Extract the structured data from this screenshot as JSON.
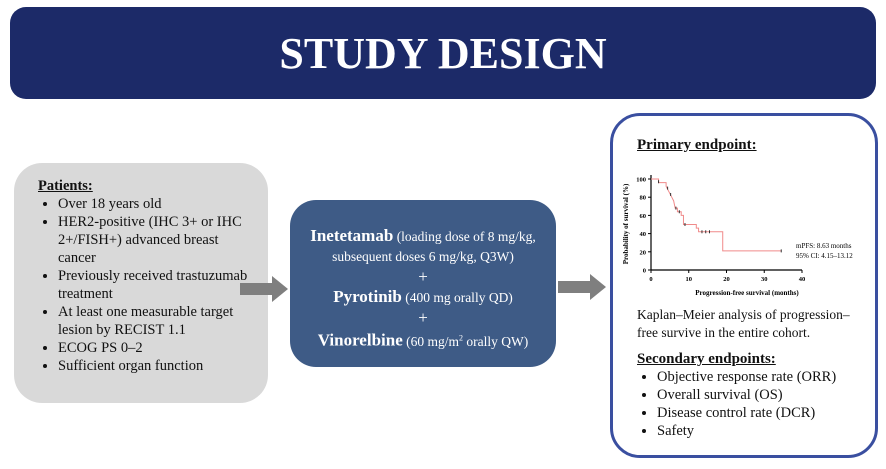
{
  "title": "STUDY DESIGN",
  "patients": {
    "heading": "Patients:",
    "items": [
      "Over 18 years old",
      "HER2-positive (IHC 3+ or IHC 2+/FISH+) advanced breast cancer",
      "Previously received trastuzumab treatment",
      "At least one measurable target lesion by RECIST 1.1",
      "ECOG PS 0–2",
      "Sufficient organ function"
    ]
  },
  "treatment": {
    "drug1": "Inetetamab",
    "dose1": "(loading dose of 8 mg/kg, subsequent doses 6 mg/kg, Q3W)",
    "plus": "+",
    "drug2": "Pyrotinib",
    "dose2": "(400 mg orally QD)",
    "drug3": "Vinorelbine",
    "dose3a": "(60 mg/m",
    "dose3sup": "2",
    "dose3b": " orally QW)"
  },
  "endpoints": {
    "primary_heading": "Primary endpoint:",
    "caption": "Kaplan–Meier analysis of progression–free survive in the entire cohort.",
    "secondary_heading": "Secondary endpoints:",
    "secondary": [
      "Objective response rate (ORR)",
      "Overall survival (OS)",
      "Disease control rate (DCR)",
      "Safety"
    ]
  },
  "chart_data": {
    "type": "line",
    "xlabel": "Progression-free survival (months)",
    "ylabel": "Probability of survival (%)",
    "xlim": [
      0,
      40
    ],
    "ylim": [
      0,
      100
    ],
    "xticks": [
      "0",
      "10",
      "20",
      "30",
      "40"
    ],
    "yticks": [
      "0",
      "20",
      "40",
      "60",
      "80",
      "100"
    ],
    "steps": [
      [
        0,
        100
      ],
      [
        2,
        100
      ],
      [
        2,
        96
      ],
      [
        4,
        96
      ],
      [
        4,
        92
      ],
      [
        4.5,
        88
      ],
      [
        5,
        84
      ],
      [
        5.5,
        80
      ],
      [
        6,
        76
      ],
      [
        6.2,
        72
      ],
      [
        6.4,
        68
      ],
      [
        7,
        68
      ],
      [
        7,
        64
      ],
      [
        8,
        64
      ],
      [
        8,
        60
      ],
      [
        8.6,
        60
      ],
      [
        8.6,
        50
      ],
      [
        12,
        50
      ],
      [
        12,
        46
      ],
      [
        12.6,
        46
      ],
      [
        12.6,
        42
      ],
      [
        19,
        42
      ],
      [
        19,
        21
      ],
      [
        34.5,
        21
      ]
    ],
    "censored": [
      [
        2,
        97
      ],
      [
        4.4,
        90
      ],
      [
        5.2,
        83
      ],
      [
        6.6,
        68
      ],
      [
        7.5,
        64
      ],
      [
        9,
        50
      ],
      [
        13.5,
        42
      ],
      [
        14.5,
        42
      ],
      [
        15.5,
        42
      ],
      [
        34.5,
        21
      ]
    ],
    "color": "#f08a8a",
    "annotations": [
      "mPFS: 8.63 months",
      "95% CI: 4.15–13.12"
    ]
  }
}
